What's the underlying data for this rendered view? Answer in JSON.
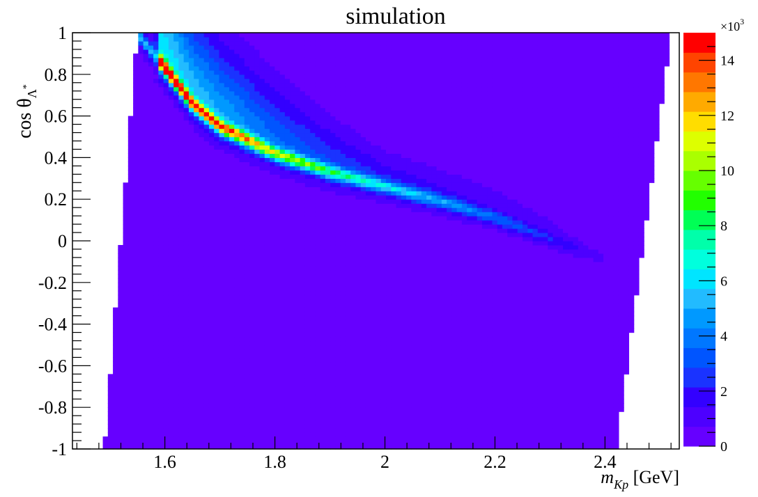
{
  "chart_data": {
    "type": "heatmap",
    "title": "simulation",
    "xlabel": {
      "main": "m",
      "sub": "Kp",
      "unit": " [GeV]"
    },
    "ylabel": {
      "main": "cos θ",
      "sub": "Λ",
      "sup": "*"
    },
    "xlim": [
      1.432,
      2.535
    ],
    "ylim": [
      -1,
      1
    ],
    "x_ticks": [
      "1.6",
      "1.8",
      "2",
      "2.2",
      "2.4"
    ],
    "x_tick_values": [
      1.6,
      1.8,
      2.0,
      2.2,
      2.4
    ],
    "y_ticks": [
      "-1",
      "-0.8",
      "-0.6",
      "-0.4",
      "-0.2",
      "0",
      "0.2",
      "0.4",
      "0.6",
      "0.8",
      "1"
    ],
    "y_tick_values": [
      -1,
      -0.8,
      -0.6,
      -0.4,
      -0.2,
      0,
      0.2,
      0.4,
      0.6,
      0.8,
      1
    ],
    "x_bins": 120,
    "y_bins": 100,
    "colorbar": {
      "zlim": [
        0,
        15000
      ],
      "multiplier": "×10",
      "multiplier_exp": "3",
      "tick_labels": [
        "0",
        "2",
        "4",
        "6",
        "8",
        "10",
        "12",
        "14"
      ],
      "tick_values": [
        0,
        2000,
        4000,
        6000,
        8000,
        10000,
        12000,
        14000
      ],
      "colors": [
        "#6600ff",
        "#4d00ff",
        "#3300ff",
        "#1a33ff",
        "#0055ff",
        "#0077ff",
        "#0099ff",
        "#22bbff",
        "#00e5ff",
        "#00ffdd",
        "#00ffaa",
        "#00ff55",
        "#22ff00",
        "#66ff00",
        "#aaff00",
        "#ddff00",
        "#ffdd00",
        "#ffaa00",
        "#ff7700",
        "#ff4400",
        "#ff0000"
      ]
    },
    "ridge_description_points": [
      {
        "x": 1.55,
        "y": 1.0,
        "value": 14500
      },
      {
        "x": 1.6,
        "y": 0.83,
        "value": 14000
      },
      {
        "x": 1.65,
        "y": 0.66,
        "value": 12000
      },
      {
        "x": 1.7,
        "y": 0.55,
        "value": 11000
      },
      {
        "x": 1.8,
        "y": 0.42,
        "value": 8000
      },
      {
        "x": 1.9,
        "y": 0.33,
        "value": 6000
      },
      {
        "x": 2.0,
        "y": 0.26,
        "value": 4500
      },
      {
        "x": 2.1,
        "y": 0.19,
        "value": 3500
      },
      {
        "x": 2.2,
        "y": 0.11,
        "value": 2500
      },
      {
        "x": 2.3,
        "y": 0.01,
        "value": 1500
      }
    ]
  }
}
